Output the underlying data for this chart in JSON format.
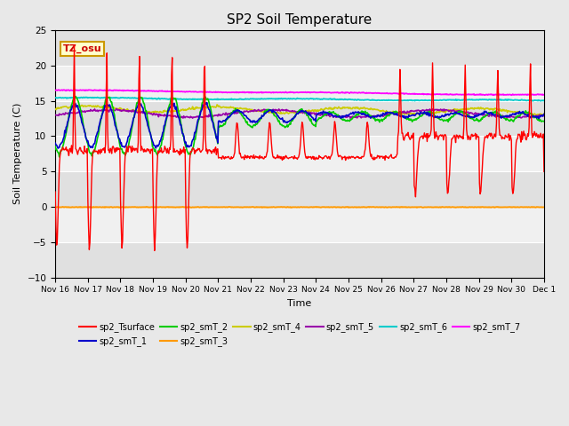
{
  "title": "SP2 Soil Temperature",
  "ylabel": "Soil Temperature (C)",
  "xlabel": "Time",
  "ylim": [
    -10,
    25
  ],
  "x_tick_labels": [
    "Nov 16",
    "Nov 17",
    "Nov 18",
    "Nov 19",
    "Nov 20",
    "Nov 21",
    "Nov 22",
    "Nov 23",
    "Nov 24",
    "Nov 25",
    "Nov 26",
    "Nov 27",
    "Nov 28",
    "Nov 29",
    "Nov 30",
    "Dec 1"
  ],
  "series_colors": {
    "sp2_Tsurface": "#ff0000",
    "sp2_smT_1": "#0000cc",
    "sp2_smT_2": "#00cc00",
    "sp2_smT_3": "#ff9900",
    "sp2_smT_4": "#cccc00",
    "sp2_smT_5": "#9900aa",
    "sp2_smT_6": "#00cccc",
    "sp2_smT_7": "#ff00ff"
  },
  "background_color": "#e8e8e8",
  "plot_bg_color": "#f0f0f0",
  "band_color": "#d8d8d8",
  "tz_label": "TZ_osu"
}
